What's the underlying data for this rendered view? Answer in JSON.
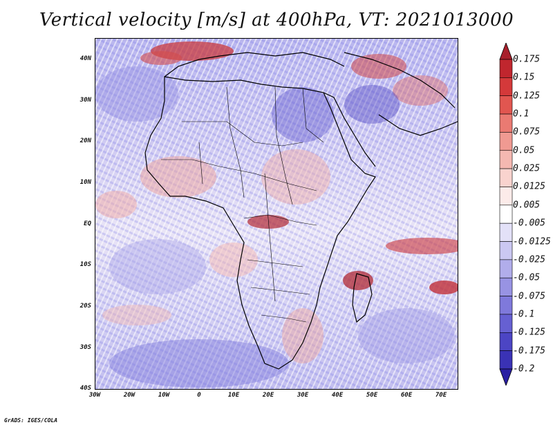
{
  "title": "Vertical velocity [m/s] at 400hPa, VT: 2021013000",
  "x_ticks": [
    "30W",
    "20W",
    "10W",
    "0",
    "10E",
    "20E",
    "30E",
    "40E",
    "50E",
    "60E",
    "70E"
  ],
  "y_ticks": [
    "40N",
    "30N",
    "20N",
    "10N",
    "EQ",
    "10S",
    "20S",
    "30S",
    "40S"
  ],
  "colorbar": {
    "labels": [
      "0.175",
      "0.15",
      "0.125",
      "0.1",
      "0.075",
      "0.05",
      "0.025",
      "0.0125",
      "0.005",
      "-0.005",
      "-0.0125",
      "-0.025",
      "-0.05",
      "-0.075",
      "-0.1",
      "-0.125",
      "-0.175",
      "-0.2"
    ],
    "colors": [
      "#a8202c",
      "#c0262e",
      "#d4393a",
      "#e15650",
      "#ea7a72",
      "#f09a92",
      "#f5b8b1",
      "#f9d3ce",
      "#fcebe9",
      "#ffffff",
      "#e3e1f8",
      "#cbc8f2",
      "#b1adeb",
      "#9893e3",
      "#7f79db",
      "#6660d2",
      "#4c45c4",
      "#3a32b5",
      "#2a1fa3"
    ]
  },
  "credit": "GrADS: IGES/COLA"
}
